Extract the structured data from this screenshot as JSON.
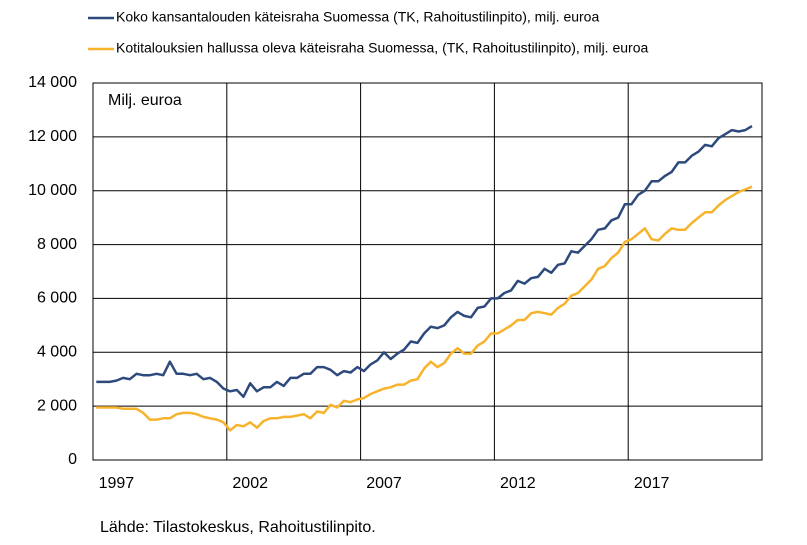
{
  "chart_data": {
    "type": "line",
    "series": [
      {
        "name": "Koko kansantalouden käteisraha Suomessa (TK, Rahoitustilinpito), milj. euroa",
        "color": "#2e4a7d",
        "values": [
          2900,
          2900,
          2900,
          2950,
          3050,
          3000,
          3200,
          3150,
          3150,
          3200,
          3150,
          3650,
          3200,
          3200,
          3150,
          3200,
          3000,
          3050,
          2900,
          2650,
          2550,
          2600,
          2350,
          2850,
          2550,
          2700,
          2700,
          2900,
          2750,
          3050,
          3050,
          3200,
          3200,
          3450,
          3450,
          3350,
          3150,
          3300,
          3250,
          3450,
          3300,
          3550,
          3700,
          4000,
          3750,
          3950,
          4100,
          4400,
          4350,
          4700,
          4950,
          4900,
          5000,
          5300,
          5500,
          5350,
          5300,
          5650,
          5700,
          6000,
          6000,
          6200,
          6300,
          6650,
          6550,
          6750,
          6800,
          7100,
          6950,
          7250,
          7300,
          7750,
          7700,
          7950,
          8200,
          8550,
          8600,
          8900,
          9000,
          9500,
          9500,
          9850,
          10000,
          10350,
          10350,
          10550,
          10700,
          11050,
          11050,
          11300,
          11450,
          11700,
          11650,
          11950,
          12100,
          12250,
          12200,
          12250,
          12400
        ]
      },
      {
        "name": "Kotitalouksien hallussa oleva käteisraha Suomessa, (TK, Rahoitustilinpito), milj. euroa",
        "color": "#f7b32b",
        "values": [
          1950,
          1950,
          1950,
          1950,
          1900,
          1900,
          1900,
          1750,
          1500,
          1500,
          1550,
          1550,
          1700,
          1750,
          1750,
          1700,
          1600,
          1550,
          1500,
          1400,
          1100,
          1300,
          1250,
          1400,
          1200,
          1450,
          1550,
          1550,
          1600,
          1600,
          1650,
          1700,
          1550,
          1800,
          1750,
          2050,
          1950,
          2200,
          2150,
          2250,
          2300,
          2450,
          2550,
          2650,
          2700,
          2800,
          2800,
          2950,
          3000,
          3400,
          3650,
          3450,
          3600,
          3950,
          4150,
          3950,
          3950,
          4250,
          4400,
          4700,
          4700,
          4850,
          5000,
          5200,
          5200,
          5450,
          5500,
          5450,
          5400,
          5650,
          5800,
          6100,
          6200,
          6450,
          6700,
          7100,
          7200,
          7500,
          7700,
          8100,
          8200,
          8400,
          8600,
          8200,
          8150,
          8400,
          8600,
          8550,
          8550,
          8800,
          9000,
          9200,
          9200,
          9450,
          9650,
          9800,
          9950,
          10050,
          10150
        ]
      }
    ],
    "categories": [
      null,
      null,
      null,
      "1997",
      null,
      null,
      null,
      null,
      null,
      null,
      null,
      null,
      null,
      null,
      null,
      null,
      null,
      null,
      null,
      null,
      null,
      null,
      null,
      "2002",
      null,
      null,
      null,
      null,
      null,
      null,
      null,
      null,
      null,
      null,
      null,
      null,
      null,
      null,
      null,
      null,
      null,
      null,
      null,
      "2007",
      null,
      null,
      null,
      null,
      null,
      null,
      null,
      null,
      null,
      null,
      null,
      null,
      null,
      null,
      null,
      null,
      null,
      null,
      null,
      "2012",
      null,
      null,
      null,
      null,
      null,
      null,
      null,
      null,
      null,
      null,
      null,
      null,
      null,
      null,
      null,
      null,
      null,
      null,
      null,
      "2017",
      null,
      null,
      null,
      null,
      null,
      null,
      null,
      null,
      null,
      null,
      null,
      null,
      null,
      null,
      null
    ],
    "ylim": [
      0,
      14000
    ],
    "yticks": [
      0,
      {
        "value": 2000,
        "label": "2 000"
      },
      {
        "value": 4000,
        "label": "4 000"
      },
      {
        "value": 6000,
        "label": "6 000"
      },
      {
        "value": 8000,
        "label": "8 000"
      },
      {
        "value": 10000,
        "label": "10 000"
      },
      {
        "value": 12000,
        "label": "12 000"
      },
      {
        "value": 14000,
        "label": "14 000"
      }
    ],
    "unit_label": "Milj. euroa",
    "source": "Lähde: Tilastokeskus, Rahoitustilinpito.",
    "grid": true
  }
}
